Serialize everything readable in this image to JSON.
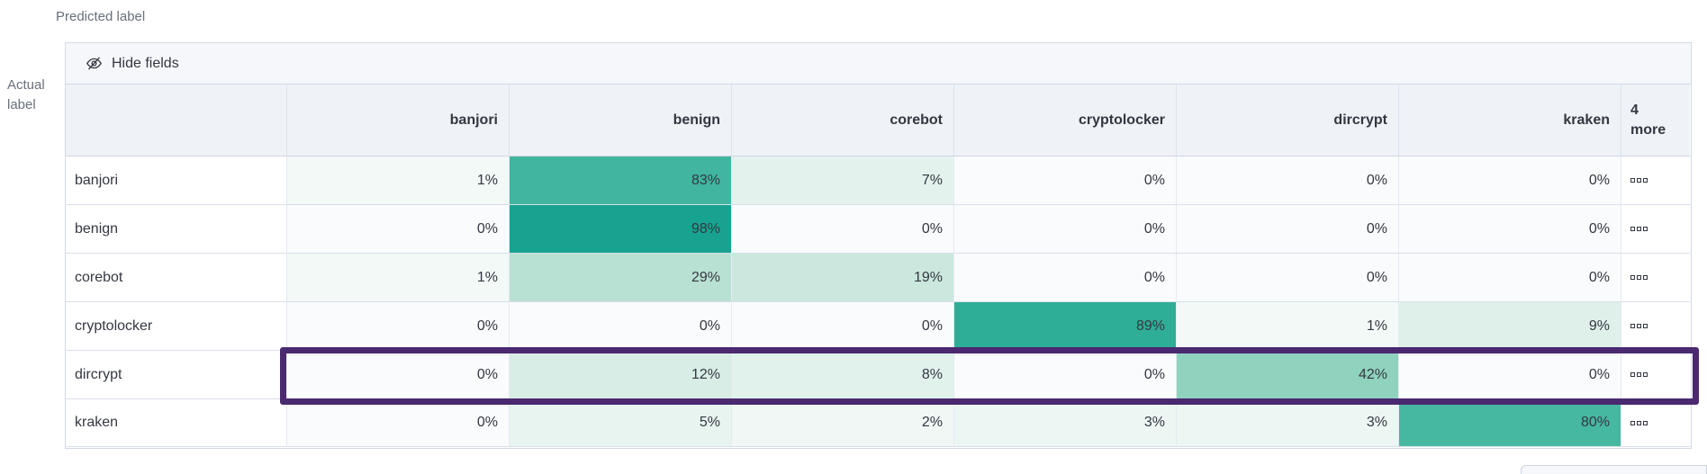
{
  "page": {
    "predicted_label": "Predicted label",
    "actual_label_lines": [
      "Actual",
      "label"
    ]
  },
  "toolbar": {
    "hide_fields_label": "Hide fields"
  },
  "colors": {
    "highlight_purple": "#4a2970",
    "header_text": "#343741",
    "axis_text": "#69707d"
  },
  "chart_data": {
    "type": "heatmap",
    "x_axis_label": "Predicted label",
    "y_axis_label": "Actual label",
    "columns": [
      "banjori",
      "benign",
      "corebot",
      "cryptolocker",
      "dircrypt",
      "kraken"
    ],
    "more_columns_label": "4 more",
    "rows": [
      "banjori",
      "benign",
      "corebot",
      "cryptolocker",
      "dircrypt",
      "kraken"
    ],
    "unit": "%",
    "values_percent": [
      [
        1,
        83,
        7,
        0,
        0,
        0
      ],
      [
        0,
        98,
        0,
        0,
        0,
        0
      ],
      [
        1,
        29,
        19,
        0,
        0,
        0
      ],
      [
        0,
        0,
        0,
        89,
        1,
        9
      ],
      [
        0,
        12,
        8,
        0,
        42,
        0
      ],
      [
        0,
        5,
        2,
        3,
        3,
        80
      ]
    ],
    "highlighted_row": "dircrypt",
    "cell_colors": {
      "0": "#fafbfd",
      "1": "#f3f9f7",
      "2": "#f0f7f5",
      "3": "#ecf6f3",
      "5": "#e7f4ef",
      "7": "#e3f2ed",
      "8": "#e1f1ec",
      "9": "#dff0ea",
      "12": "#d8ede5",
      "19": "#cbe8de",
      "29": "#b9e1d3",
      "42": "#8fd2be",
      "80": "#46b8a2",
      "83": "#41b5a0",
      "89": "#2fae97",
      "98": "#18a391"
    }
  }
}
